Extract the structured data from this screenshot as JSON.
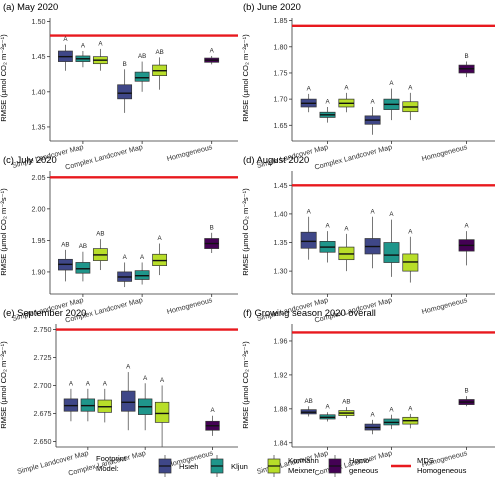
{
  "legend": {
    "title_line1": "Footprint",
    "title_line2": "Model:",
    "items": [
      {
        "label": [
          "Hsieh"
        ],
        "color": "#3f4788"
      },
      {
        "label": [
          "Kljun"
        ],
        "color": "#1f968b"
      },
      {
        "label": [
          "Kormann",
          "Meixner"
        ],
        "color": "#b8de29"
      },
      {
        "label": [
          "Homo-",
          "geneous"
        ],
        "color": "#440154"
      }
    ],
    "line_label": [
      "MDS",
      "Homogeneous"
    ],
    "line_color": "#e8191e"
  },
  "chart_data": [
    {
      "type": "box",
      "title": "(a) May 2020",
      "ylabel": "RMSE (µmol CO₂ m⁻²s⁻¹)",
      "ylim": [
        1.33,
        1.505
      ],
      "yticks": [
        1.35,
        1.4,
        1.45,
        1.5
      ],
      "tick_labels": [
        "1.35",
        "1.40",
        "1.45",
        "1.50"
      ],
      "groups": [
        "Simple Landcover Map",
        "Complex Landcover Map",
        "Homogeneous"
      ],
      "mds": 1.48,
      "boxes": [
        {
          "group": 0,
          "model": 0,
          "whislo": 1.43,
          "q1": 1.443,
          "med": 1.45,
          "q3": 1.458,
          "whishi": 1.467,
          "letter": "A"
        },
        {
          "group": 0,
          "model": 1,
          "whislo": 1.435,
          "q1": 1.443,
          "med": 1.447,
          "q3": 1.451,
          "whishi": 1.458,
          "letter": "A"
        },
        {
          "group": 0,
          "model": 2,
          "whislo": 1.43,
          "q1": 1.44,
          "med": 1.445,
          "q3": 1.45,
          "whishi": 1.461,
          "letter": "A"
        },
        {
          "group": 1,
          "model": 0,
          "whislo": 1.37,
          "q1": 1.39,
          "med": 1.398,
          "q3": 1.41,
          "whishi": 1.432,
          "letter": "B"
        },
        {
          "group": 1,
          "model": 1,
          "whislo": 1.4,
          "q1": 1.415,
          "med": 1.42,
          "q3": 1.428,
          "whishi": 1.443,
          "letter": "AB"
        },
        {
          "group": 1,
          "model": 2,
          "whislo": 1.403,
          "q1": 1.423,
          "med": 1.43,
          "q3": 1.438,
          "whishi": 1.449,
          "letter": "AB"
        },
        {
          "group": 2,
          "model": 3,
          "whislo": 1.439,
          "q1": 1.442,
          "med": 1.445,
          "q3": 1.448,
          "whishi": 1.451,
          "letter": "A"
        }
      ]
    },
    {
      "type": "box",
      "title": "(b) June 2020",
      "ylabel": "RMSE (µmol CO₂ m⁻²s⁻¹)",
      "ylim": [
        1.62,
        1.855
      ],
      "yticks": [
        1.65,
        1.7,
        1.75,
        1.8,
        1.85
      ],
      "tick_labels": [
        "1.65",
        "1.70",
        "1.75",
        "1.80",
        "1.85"
      ],
      "groups": [
        "Simple Landcover Map",
        "Complex Landcover Map",
        "Homogeneous"
      ],
      "mds": 1.84,
      "boxes": [
        {
          "group": 0,
          "model": 0,
          "whislo": 1.675,
          "q1": 1.685,
          "med": 1.692,
          "q3": 1.7,
          "whishi": 1.71,
          "letter": "A"
        },
        {
          "group": 0,
          "model": 1,
          "whislo": 1.655,
          "q1": 1.665,
          "med": 1.67,
          "q3": 1.675,
          "whishi": 1.685,
          "letter": "A"
        },
        {
          "group": 0,
          "model": 2,
          "whislo": 1.675,
          "q1": 1.685,
          "med": 1.692,
          "q3": 1.7,
          "whishi": 1.712,
          "letter": "A"
        },
        {
          "group": 1,
          "model": 0,
          "whislo": 1.632,
          "q1": 1.652,
          "med": 1.66,
          "q3": 1.668,
          "whishi": 1.685,
          "letter": "A"
        },
        {
          "group": 1,
          "model": 1,
          "whislo": 1.66,
          "q1": 1.68,
          "med": 1.69,
          "q3": 1.7,
          "whishi": 1.72,
          "letter": "A"
        },
        {
          "group": 1,
          "model": 2,
          "whislo": 1.66,
          "q1": 1.676,
          "med": 1.685,
          "q3": 1.695,
          "whishi": 1.712,
          "letter": "A"
        },
        {
          "group": 2,
          "model": 3,
          "whislo": 1.742,
          "q1": 1.75,
          "med": 1.758,
          "q3": 1.765,
          "whishi": 1.772,
          "letter": "B"
        }
      ]
    },
    {
      "type": "box",
      "title": "(c) July 2020",
      "ylabel": "RMSE (µmol CO₂ m⁻²s⁻¹)",
      "ylim": [
        1.865,
        2.06
      ],
      "yticks": [
        1.9,
        1.95,
        2.0,
        2.05
      ],
      "tick_labels": [
        "1.90",
        "1.95",
        "2.00",
        "2.05"
      ],
      "groups": [
        "Simple Landcover Map",
        "Complex Landcover Map",
        "Homogeneous"
      ],
      "mds": 2.05,
      "boxes": [
        {
          "group": 0,
          "model": 0,
          "whislo": 1.885,
          "q1": 1.903,
          "med": 1.912,
          "q3": 1.92,
          "whishi": 1.935,
          "letter": "AB"
        },
        {
          "group": 0,
          "model": 1,
          "whislo": 1.885,
          "q1": 1.898,
          "med": 1.905,
          "q3": 1.915,
          "whishi": 1.932,
          "letter": "AB"
        },
        {
          "group": 0,
          "model": 2,
          "whislo": 1.903,
          "q1": 1.918,
          "med": 1.927,
          "q3": 1.937,
          "whishi": 1.952,
          "letter": "AB"
        },
        {
          "group": 1,
          "model": 0,
          "whislo": 1.876,
          "q1": 1.885,
          "med": 1.892,
          "q3": 1.9,
          "whishi": 1.915,
          "letter": "A"
        },
        {
          "group": 1,
          "model": 1,
          "whislo": 1.88,
          "q1": 1.888,
          "med": 1.894,
          "q3": 1.902,
          "whishi": 1.915,
          "letter": "A"
        },
        {
          "group": 1,
          "model": 2,
          "whislo": 1.895,
          "q1": 1.91,
          "med": 1.918,
          "q3": 1.928,
          "whishi": 1.945,
          "letter": "A"
        },
        {
          "group": 2,
          "model": 3,
          "whislo": 1.93,
          "q1": 1.937,
          "med": 1.945,
          "q3": 1.953,
          "whishi": 1.962,
          "letter": "B"
        }
      ]
    },
    {
      "type": "box",
      "title": "(d) August 2020",
      "ylabel": "RMSE (µmol CO₂ m⁻²s⁻¹)",
      "ylim": [
        1.26,
        1.475
      ],
      "yticks": [
        1.3,
        1.35,
        1.4,
        1.45
      ],
      "tick_labels": [
        "1.30",
        "1.35",
        "1.40",
        "1.45"
      ],
      "groups": [
        "Simple Landcover Map",
        "Complex Landcover Map",
        "Homogeneous"
      ],
      "mds": 1.45,
      "boxes": [
        {
          "group": 0,
          "model": 0,
          "whislo": 1.32,
          "q1": 1.34,
          "med": 1.352,
          "q3": 1.368,
          "whishi": 1.395,
          "letter": "A"
        },
        {
          "group": 0,
          "model": 1,
          "whislo": 1.315,
          "q1": 1.333,
          "med": 1.342,
          "q3": 1.352,
          "whishi": 1.37,
          "letter": "A"
        },
        {
          "group": 0,
          "model": 2,
          "whislo": 1.3,
          "q1": 1.32,
          "med": 1.33,
          "q3": 1.342,
          "whishi": 1.365,
          "letter": "A"
        },
        {
          "group": 1,
          "model": 0,
          "whislo": 1.305,
          "q1": 1.33,
          "med": 1.343,
          "q3": 1.357,
          "whishi": 1.395,
          "letter": "A"
        },
        {
          "group": 1,
          "model": 1,
          "whislo": 1.29,
          "q1": 1.315,
          "med": 1.328,
          "q3": 1.35,
          "whishi": 1.39,
          "letter": "A"
        },
        {
          "group": 1,
          "model": 2,
          "whislo": 1.28,
          "q1": 1.3,
          "med": 1.316,
          "q3": 1.33,
          "whishi": 1.36,
          "letter": "A"
        },
        {
          "group": 2,
          "model": 3,
          "whislo": 1.31,
          "q1": 1.335,
          "med": 1.345,
          "q3": 1.355,
          "whishi": 1.37,
          "letter": "A"
        }
      ]
    },
    {
      "type": "box",
      "title": "(e) September 2020",
      "ylabel": "RMSE (µmol CO₂ m⁻²s⁻¹)",
      "ylim": [
        2.645,
        2.755
      ],
      "yticks": [
        2.65,
        2.675,
        2.7,
        2.725,
        2.75
      ],
      "tick_labels": [
        "2.650",
        "2.675",
        "2.700",
        "2.725",
        "2.750"
      ],
      "groups": [
        "Simple Landcover Map",
        "Complex Landcover Map",
        "Homogeneous"
      ],
      "mds": 2.75,
      "boxes": [
        {
          "group": 0,
          "model": 0,
          "whislo": 2.668,
          "q1": 2.677,
          "med": 2.682,
          "q3": 2.688,
          "whishi": 2.697,
          "letter": "A"
        },
        {
          "group": 0,
          "model": 1,
          "whislo": 2.668,
          "q1": 2.677,
          "med": 2.682,
          "q3": 2.688,
          "whishi": 2.697,
          "letter": "A"
        },
        {
          "group": 0,
          "model": 2,
          "whislo": 2.667,
          "q1": 2.676,
          "med": 2.681,
          "q3": 2.687,
          "whishi": 2.697,
          "letter": "A"
        },
        {
          "group": 1,
          "model": 0,
          "whislo": 2.66,
          "q1": 2.677,
          "med": 2.685,
          "q3": 2.695,
          "whishi": 2.712,
          "letter": "A"
        },
        {
          "group": 1,
          "model": 1,
          "whislo": 2.66,
          "q1": 2.674,
          "med": 2.681,
          "q3": 2.688,
          "whishi": 2.702,
          "letter": "A"
        },
        {
          "group": 1,
          "model": 2,
          "whislo": 2.645,
          "q1": 2.667,
          "med": 2.675,
          "q3": 2.685,
          "whishi": 2.7,
          "letter": "A"
        },
        {
          "group": 2,
          "model": 3,
          "whislo": 2.655,
          "q1": 2.66,
          "med": 2.664,
          "q3": 2.668,
          "whishi": 2.673,
          "letter": "A"
        }
      ]
    },
    {
      "type": "box",
      "title": "(f) Growing season 2020 overall",
      "ylabel": "RMSE (µmol CO₂ m⁻²s⁻¹)",
      "ylim": [
        1.835,
        1.98
      ],
      "yticks": [
        1.84,
        1.88,
        1.92,
        1.96
      ],
      "tick_labels": [
        "1.84",
        "1.88",
        "1.92",
        "1.96"
      ],
      "groups": [
        "Simple Landcover Map",
        "Complex Landcover Map",
        "Homogeneous"
      ],
      "mds": 1.97,
      "boxes": [
        {
          "group": 0,
          "model": 0,
          "whislo": 1.871,
          "q1": 1.874,
          "med": 1.876,
          "q3": 1.879,
          "whishi": 1.883,
          "letter": "AB"
        },
        {
          "group": 0,
          "model": 1,
          "whislo": 1.865,
          "q1": 1.868,
          "med": 1.87,
          "q3": 1.873,
          "whishi": 1.876,
          "letter": "A"
        },
        {
          "group": 0,
          "model": 2,
          "whislo": 1.869,
          "q1": 1.872,
          "med": 1.875,
          "q3": 1.878,
          "whishi": 1.882,
          "letter": "AB"
        },
        {
          "group": 1,
          "model": 0,
          "whislo": 1.85,
          "q1": 1.855,
          "med": 1.858,
          "q3": 1.862,
          "whishi": 1.867,
          "letter": "A"
        },
        {
          "group": 1,
          "model": 1,
          "whislo": 1.856,
          "q1": 1.861,
          "med": 1.864,
          "q3": 1.868,
          "whishi": 1.873,
          "letter": "A"
        },
        {
          "group": 1,
          "model": 2,
          "whislo": 1.857,
          "q1": 1.862,
          "med": 1.866,
          "q3": 1.87,
          "whishi": 1.874,
          "letter": "A"
        },
        {
          "group": 2,
          "model": 3,
          "whislo": 1.883,
          "q1": 1.885,
          "med": 1.888,
          "q3": 1.891,
          "whishi": 1.895,
          "letter": "B"
        }
      ]
    }
  ]
}
